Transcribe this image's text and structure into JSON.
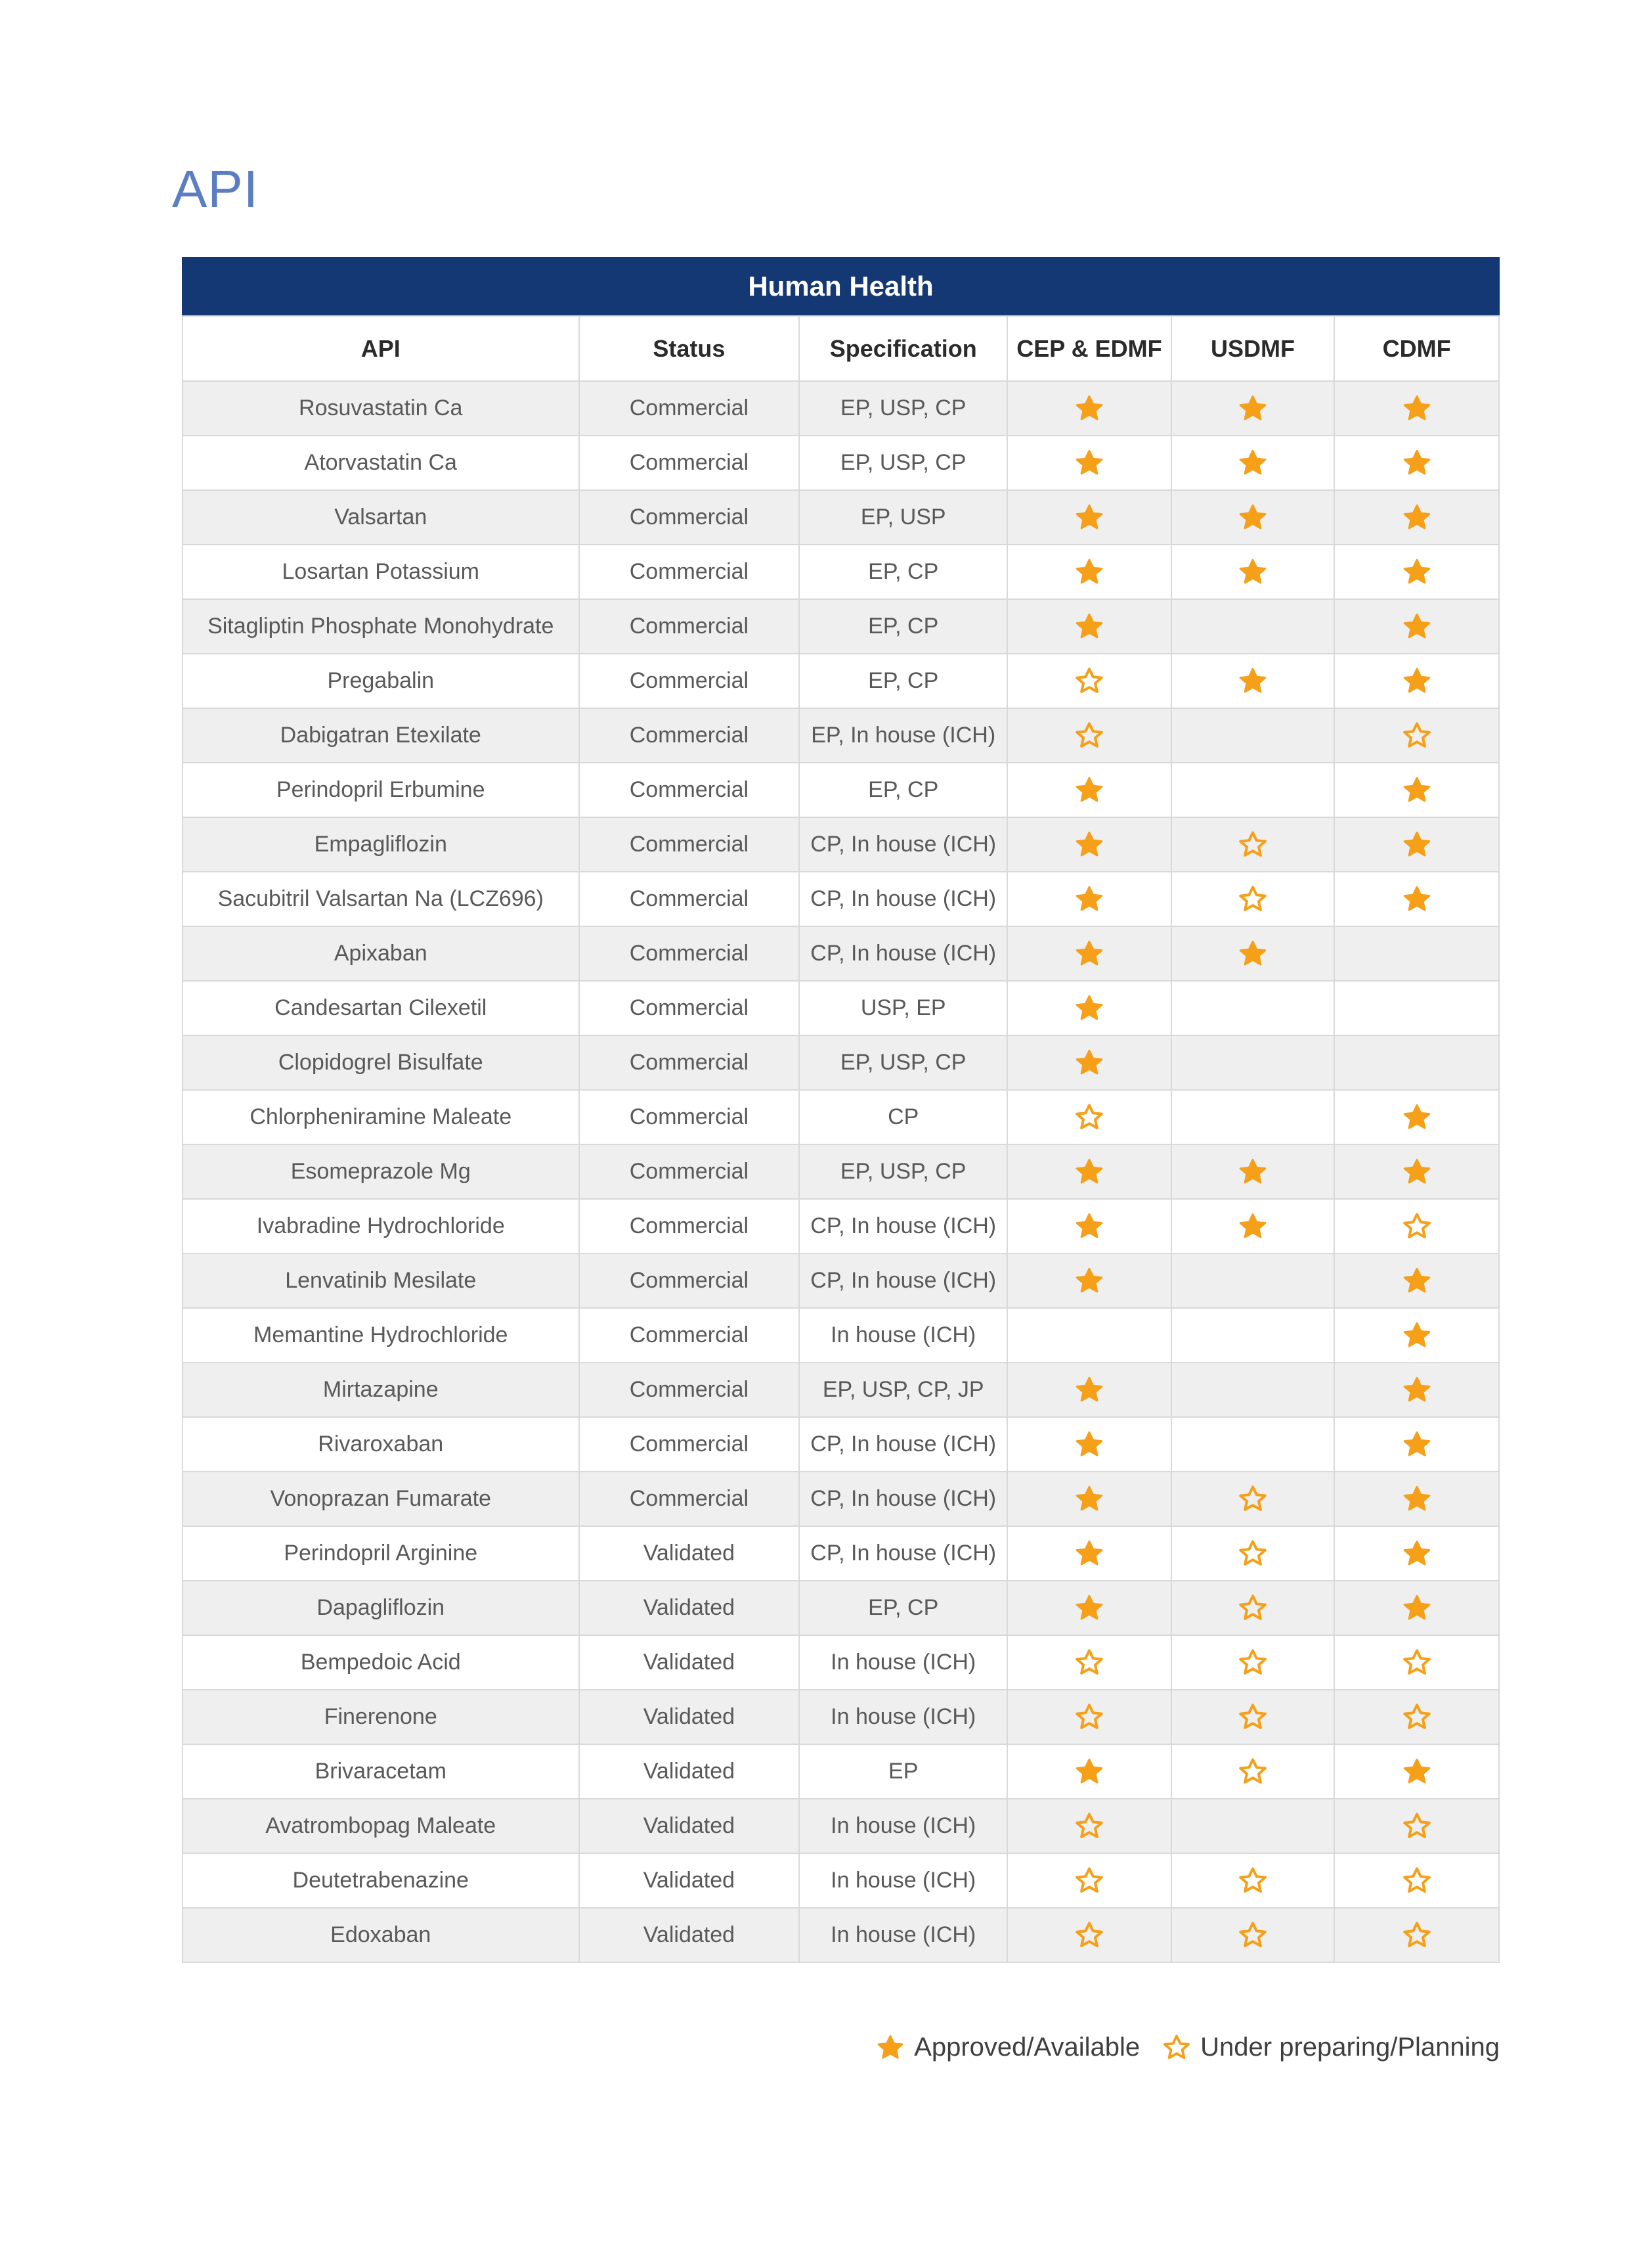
{
  "page": {
    "title": "API"
  },
  "colors": {
    "banner_bg": "#143873",
    "title_blue": "#5b7dc2",
    "star": "#f6a01a",
    "row_alt": "#efefef",
    "border": "#d9d9d9",
    "cell_text": "#595959",
    "header_text": "#2b2b2b"
  },
  "icons": {
    "filled": "star-filled-icon",
    "outline": "star-outline-icon"
  },
  "table": {
    "banner": "Human Health",
    "columns": [
      "API",
      "Status",
      "Specification",
      "CEP & EDMF",
      "USDMF",
      "CDMF"
    ],
    "column_slugs": [
      "api",
      "status",
      "specification",
      "cep-edmf",
      "usdmf",
      "cdmf"
    ],
    "rows": [
      {
        "api": "Rosuvastatin Ca",
        "status": "Commercial",
        "spec": "EP, USP, CP",
        "stars": {
          "cep_edmf": "filled",
          "usdmf": "filled",
          "cdmf": "filled"
        }
      },
      {
        "api": "Atorvastatin Ca",
        "status": "Commercial",
        "spec": "EP, USP, CP",
        "stars": {
          "cep_edmf": "filled",
          "usdmf": "filled",
          "cdmf": "filled"
        }
      },
      {
        "api": "Valsartan",
        "status": "Commercial",
        "spec": "EP, USP",
        "stars": {
          "cep_edmf": "filled",
          "usdmf": "filled",
          "cdmf": "filled"
        }
      },
      {
        "api": "Losartan Potassium",
        "status": "Commercial",
        "spec": "EP, CP",
        "stars": {
          "cep_edmf": "filled",
          "usdmf": "filled",
          "cdmf": "filled"
        }
      },
      {
        "api": "Sitagliptin Phosphate Monohydrate",
        "status": "Commercial",
        "spec": "EP, CP",
        "stars": {
          "cep_edmf": "filled",
          "usdmf": "none",
          "cdmf": "filled"
        }
      },
      {
        "api": "Pregabalin",
        "status": "Commercial",
        "spec": "EP, CP",
        "stars": {
          "cep_edmf": "outline",
          "usdmf": "filled",
          "cdmf": "filled"
        }
      },
      {
        "api": "Dabigatran Etexilate",
        "status": "Commercial",
        "spec": "EP, In house (ICH)",
        "stars": {
          "cep_edmf": "outline",
          "usdmf": "none",
          "cdmf": "outline"
        }
      },
      {
        "api": "Perindopril Erbumine",
        "status": "Commercial",
        "spec": "EP, CP",
        "stars": {
          "cep_edmf": "filled",
          "usdmf": "none",
          "cdmf": "filled"
        }
      },
      {
        "api": "Empagliflozin",
        "status": "Commercial",
        "spec": "CP, In house (ICH)",
        "stars": {
          "cep_edmf": "filled",
          "usdmf": "outline",
          "cdmf": "filled"
        }
      },
      {
        "api": "Sacubitril Valsartan Na (LCZ696)",
        "status": "Commercial",
        "spec": "CP, In house (ICH)",
        "stars": {
          "cep_edmf": "filled",
          "usdmf": "outline",
          "cdmf": "filled"
        }
      },
      {
        "api": "Apixaban",
        "status": "Commercial",
        "spec": "CP, In house (ICH)",
        "stars": {
          "cep_edmf": "filled",
          "usdmf": "filled",
          "cdmf": "none"
        }
      },
      {
        "api": "Candesartan Cilexetil",
        "status": "Commercial",
        "spec": "USP, EP",
        "stars": {
          "cep_edmf": "filled",
          "usdmf": "none",
          "cdmf": "none"
        }
      },
      {
        "api": "Clopidogrel Bisulfate",
        "status": "Commercial",
        "spec": "EP, USP, CP",
        "stars": {
          "cep_edmf": "filled",
          "usdmf": "none",
          "cdmf": "none"
        }
      },
      {
        "api": "Chlorpheniramine Maleate",
        "status": "Commercial",
        "spec": "CP",
        "stars": {
          "cep_edmf": "outline",
          "usdmf": "none",
          "cdmf": "filled"
        }
      },
      {
        "api": "Esomeprazole Mg",
        "status": "Commercial",
        "spec": "EP, USP, CP",
        "stars": {
          "cep_edmf": "filled",
          "usdmf": "filled",
          "cdmf": "filled"
        }
      },
      {
        "api": "Ivabradine Hydrochloride",
        "status": "Commercial",
        "spec": "CP, In house (ICH)",
        "stars": {
          "cep_edmf": "filled",
          "usdmf": "filled",
          "cdmf": "outline"
        }
      },
      {
        "api": "Lenvatinib Mesilate",
        "status": "Commercial",
        "spec": "CP, In house (ICH)",
        "stars": {
          "cep_edmf": "filled",
          "usdmf": "none",
          "cdmf": "filled"
        }
      },
      {
        "api": "Memantine Hydrochloride",
        "status": "Commercial",
        "spec": "In house (ICH)",
        "stars": {
          "cep_edmf": "none",
          "usdmf": "none",
          "cdmf": "filled"
        }
      },
      {
        "api": "Mirtazapine",
        "status": "Commercial",
        "spec": "EP, USP, CP, JP",
        "stars": {
          "cep_edmf": "filled",
          "usdmf": "none",
          "cdmf": "filled"
        }
      },
      {
        "api": "Rivaroxaban",
        "status": "Commercial",
        "spec": "CP, In house (ICH)",
        "stars": {
          "cep_edmf": "filled",
          "usdmf": "none",
          "cdmf": "filled"
        }
      },
      {
        "api": "Vonoprazan Fumarate",
        "status": "Commercial",
        "spec": "CP, In house (ICH)",
        "stars": {
          "cep_edmf": "filled",
          "usdmf": "outline",
          "cdmf": "filled"
        }
      },
      {
        "api": "Perindopril Arginine",
        "status": "Validated",
        "spec": "CP, In house (ICH)",
        "stars": {
          "cep_edmf": "filled",
          "usdmf": "outline",
          "cdmf": "filled"
        }
      },
      {
        "api": "Dapagliflozin",
        "status": "Validated",
        "spec": "EP, CP",
        "stars": {
          "cep_edmf": "filled",
          "usdmf": "outline",
          "cdmf": "filled"
        }
      },
      {
        "api": "Bempedoic Acid",
        "status": "Validated",
        "spec": "In house (ICH)",
        "stars": {
          "cep_edmf": "outline",
          "usdmf": "outline",
          "cdmf": "outline"
        }
      },
      {
        "api": "Finerenone",
        "status": "Validated",
        "spec": "In house (ICH)",
        "stars": {
          "cep_edmf": "outline",
          "usdmf": "outline",
          "cdmf": "outline"
        }
      },
      {
        "api": "Brivaracetam",
        "status": "Validated",
        "spec": "EP",
        "stars": {
          "cep_edmf": "filled",
          "usdmf": "outline",
          "cdmf": "filled"
        }
      },
      {
        "api": "Avatrombopag Maleate",
        "status": "Validated",
        "spec": "In house (ICH)",
        "stars": {
          "cep_edmf": "outline",
          "usdmf": "none",
          "cdmf": "outline"
        }
      },
      {
        "api": "Deutetrabenazine",
        "status": "Validated",
        "spec": "In house (ICH)",
        "stars": {
          "cep_edmf": "outline",
          "usdmf": "outline",
          "cdmf": "outline"
        }
      },
      {
        "api": "Edoxaban",
        "status": "Validated",
        "spec": "In house (ICH)",
        "stars": {
          "cep_edmf": "outline",
          "usdmf": "outline",
          "cdmf": "outline"
        }
      }
    ],
    "legend": [
      {
        "icon": "star-filled-icon",
        "label": "Approved/Available"
      },
      {
        "icon": "star-outline-icon",
        "label": "Under preparing/Planning"
      }
    ]
  }
}
